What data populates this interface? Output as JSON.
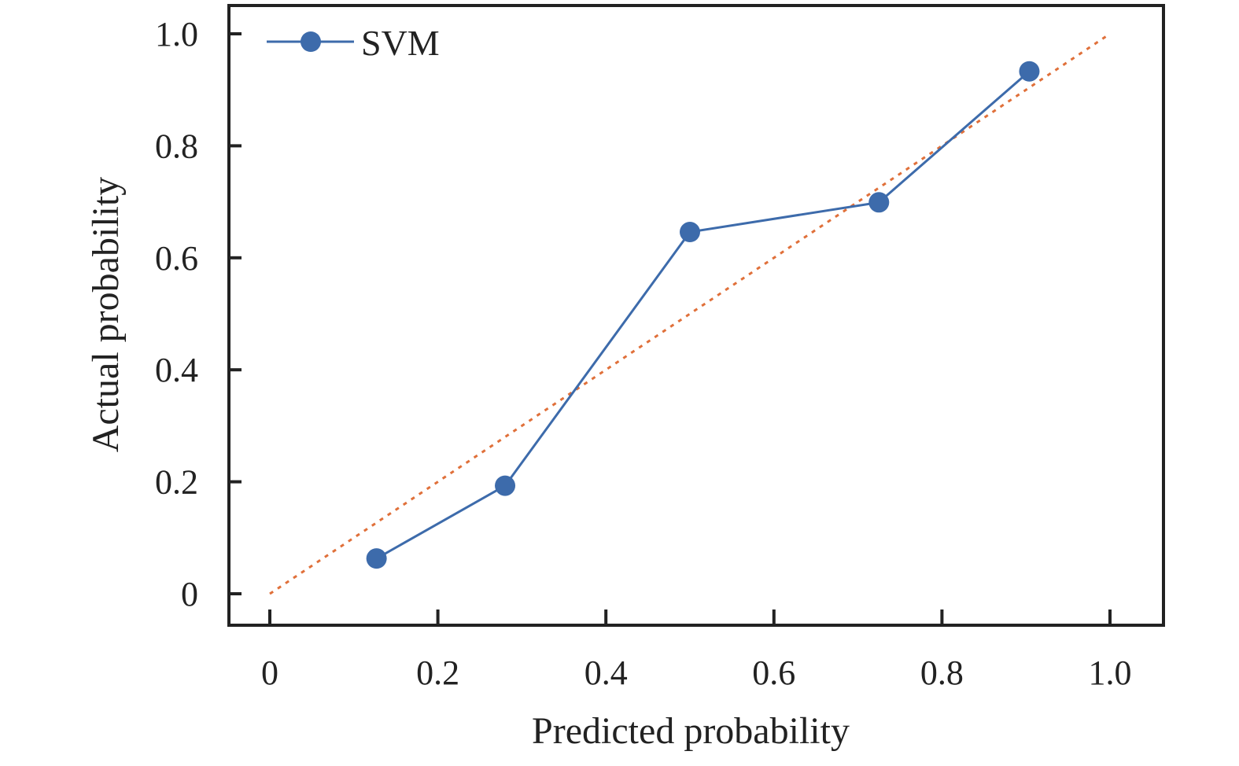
{
  "chart_data": {
    "type": "line",
    "title": "",
    "xlabel": "Predicted probability",
    "ylabel": "Actual probability",
    "xlim": [
      0,
      1.0
    ],
    "ylim": [
      0,
      1.0
    ],
    "x_ticks": [
      "0",
      "0.2",
      "0.4",
      "0.6",
      "0.8",
      "1.0"
    ],
    "y_ticks": [
      "0",
      "0.2",
      "0.4",
      "0.6",
      "0.8",
      "1.0"
    ],
    "grid": false,
    "legend_position": "top-left",
    "series": [
      {
        "name": "SVM",
        "color": "#3d6bab",
        "marker": "circle",
        "x": [
          0.127,
          0.28,
          0.5,
          0.725,
          0.904
        ],
        "y": [
          0.063,
          0.193,
          0.646,
          0.699,
          0.933
        ]
      }
    ],
    "reference_line": {
      "style": "dotted",
      "color": "#e0703a",
      "x": [
        0,
        1.0
      ],
      "y": [
        0,
        1.0
      ]
    }
  }
}
